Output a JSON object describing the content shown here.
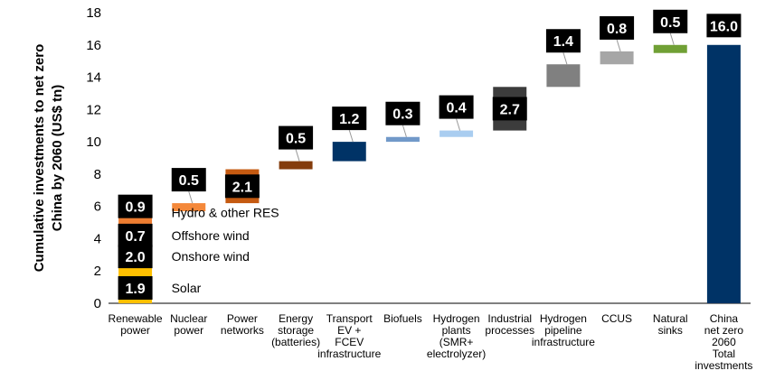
{
  "chart_data": {
    "type": "bar",
    "subtype": "waterfall",
    "ylabel": "Cumulative investments to net zero China by 2060 (US$ tn)",
    "ylabel_lines": [
      "Cumulative investments to net zero",
      "China by 2060 (US$ tn)"
    ],
    "ylim": [
      0,
      18
    ],
    "yticks": [
      0,
      2,
      4,
      6,
      8,
      10,
      12,
      14,
      16,
      18
    ],
    "grid": false,
    "legend": "none",
    "categories": [
      {
        "lines": [
          "Renewable",
          "power"
        ]
      },
      {
        "lines": [
          "Nuclear",
          "power"
        ]
      },
      {
        "lines": [
          "Power",
          "networks"
        ]
      },
      {
        "lines": [
          "Energy",
          "storage",
          "(batteries)"
        ]
      },
      {
        "lines": [
          "Transport",
          "EV +",
          "FCEV",
          "infrastructure"
        ]
      },
      {
        "lines": [
          "Biofuels"
        ]
      },
      {
        "lines": [
          "Hydrogen",
          "plants",
          "(SMR+",
          "electrolyzer)"
        ]
      },
      {
        "lines": [
          "Industrial",
          "processes"
        ]
      },
      {
        "lines": [
          "Hydrogen",
          "pipeline",
          "infrastructure"
        ]
      },
      {
        "lines": [
          "CCUS"
        ]
      },
      {
        "lines": [
          "Natural",
          "sinks"
        ]
      },
      {
        "lines": [
          "China",
          "net zero",
          "2060",
          "Total",
          "investments"
        ]
      }
    ],
    "bars": [
      {
        "index": 0,
        "start": 0,
        "end": 1.9,
        "value": 1.9,
        "label": "1.9",
        "color": "#ffc000",
        "sublabel": "Solar"
      },
      {
        "index": 0,
        "start": 1.9,
        "end": 3.9,
        "value": 2.0,
        "label": "2.0",
        "color": "#ffc000",
        "sublabel": "Onshore wind"
      },
      {
        "index": 0,
        "start": 3.9,
        "end": 4.6,
        "value": 0.7,
        "label": "0.7",
        "color": "#f0961e",
        "sublabel": "Offshore wind"
      },
      {
        "index": 0,
        "start": 4.6,
        "end": 5.5,
        "value": 0.9,
        "label": "0.9",
        "color": "#ed7d31",
        "sublabel": "Hydro & other RES"
      },
      {
        "index": 1,
        "start": 5.7,
        "end": 6.2,
        "value": 0.5,
        "label": "0.5",
        "color": "#f4883a"
      },
      {
        "index": 2,
        "start": 6.2,
        "end": 8.3,
        "value": 2.1,
        "label": "2.1",
        "color": "#c55a11"
      },
      {
        "index": 3,
        "start": 8.3,
        "end": 8.8,
        "value": 0.5,
        "label": "0.5",
        "color": "#843c0c"
      },
      {
        "index": 4,
        "start": 8.8,
        "end": 10.0,
        "value": 1.2,
        "label": "1.2",
        "color": "#003366"
      },
      {
        "index": 5,
        "start": 10.0,
        "end": 10.3,
        "value": 0.3,
        "label": "0.3",
        "color": "#7199c9"
      },
      {
        "index": 6,
        "start": 10.3,
        "end": 10.7,
        "value": 0.4,
        "label": "0.4",
        "color": "#a9cdf0"
      },
      {
        "index": 7,
        "start": 10.7,
        "end": 13.4,
        "value": 2.7,
        "label": "2.7",
        "color": "#3c3c3c"
      },
      {
        "index": 8,
        "start": 13.4,
        "end": 14.8,
        "value": 1.4,
        "label": "1.4",
        "color": "#808080"
      },
      {
        "index": 9,
        "start": 14.8,
        "end": 15.6,
        "value": 0.8,
        "label": "0.8",
        "color": "#a6a6a6"
      },
      {
        "index": 10,
        "start": 15.5,
        "end": 16.0,
        "value": 0.5,
        "label": "0.5",
        "color": "#70a035"
      },
      {
        "index": 11,
        "start": 0,
        "end": 16.0,
        "value": 16.0,
        "label": "16.0",
        "color": "#003366"
      }
    ]
  }
}
